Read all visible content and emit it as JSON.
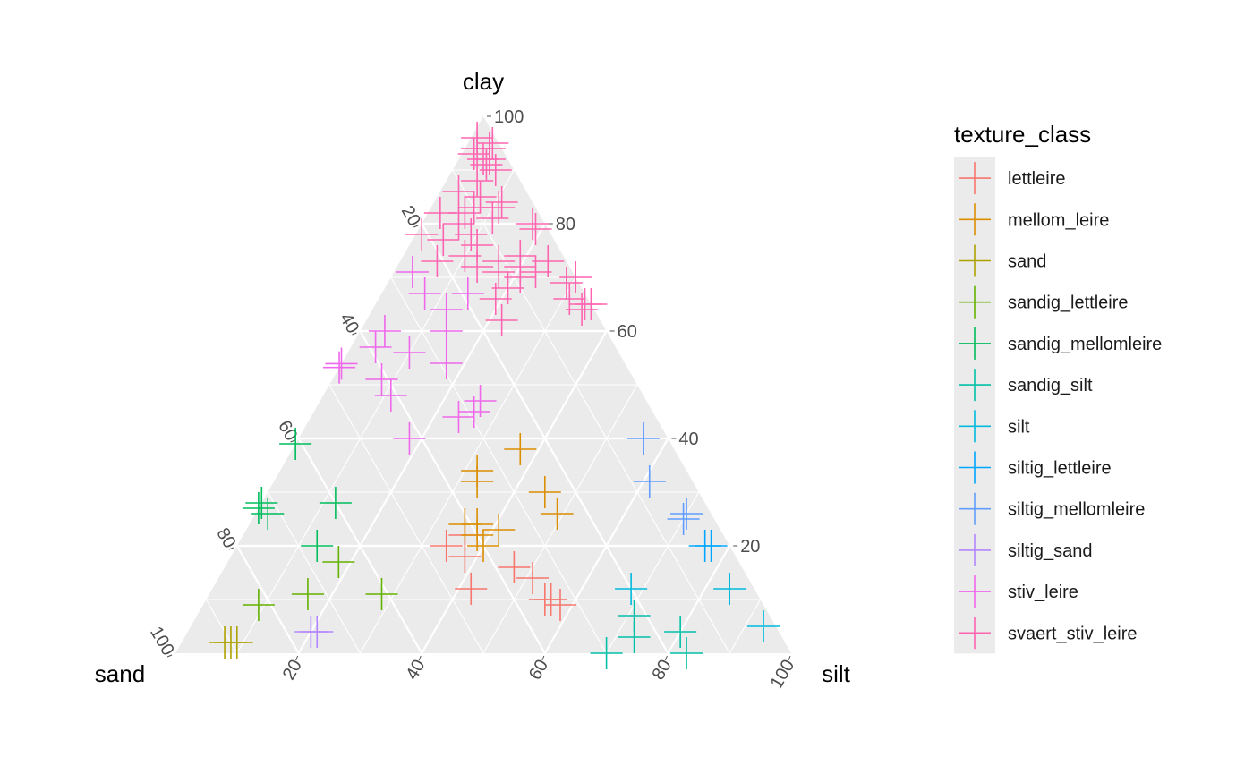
{
  "chart_data": {
    "type": "scatter",
    "subtype": "ternary",
    "axes": {
      "clay": {
        "label": "clay",
        "ticks": [
          20,
          40,
          60,
          80,
          100
        ]
      },
      "sand": {
        "label": "sand",
        "ticks": [
          20,
          40,
          60,
          80,
          100
        ]
      },
      "silt": {
        "label": "silt",
        "ticks": [
          20,
          40,
          60,
          80,
          100
        ]
      }
    },
    "range": [
      0,
      100
    ],
    "grid": true,
    "marker": "plus",
    "legend": {
      "title": "texture_class",
      "placement": "right"
    },
    "series": [
      {
        "name": "lettleire",
        "color": "#F8766D",
        "points": [
          [
            12,
            46,
            42
          ],
          [
            18,
            44,
            38
          ],
          [
            20,
            46,
            34
          ],
          [
            22,
            42,
            36
          ],
          [
            14,
            35,
            51
          ],
          [
            16,
            37,
            47
          ],
          [
            9,
            33,
            58
          ],
          [
            10,
            34,
            56
          ],
          [
            10,
            35,
            55
          ]
        ]
      },
      {
        "name": "mellom_leire",
        "color": "#DB8E00",
        "points": [
          [
            34,
            34,
            32
          ],
          [
            32,
            35,
            33
          ],
          [
            22,
            40,
            38
          ],
          [
            24,
            39,
            37
          ],
          [
            23,
            36,
            41
          ],
          [
            38,
            25,
            37
          ],
          [
            30,
            25,
            45
          ],
          [
            26,
            25,
            49
          ],
          [
            24,
            41,
            35
          ],
          [
            20,
            40,
            40
          ]
        ]
      },
      {
        "name": "sand",
        "color": "#AEA200",
        "points": [
          [
            2,
            91,
            7
          ],
          [
            2,
            90,
            8
          ],
          [
            2,
            89,
            9
          ]
        ]
      },
      {
        "name": "sandig_lettleire",
        "color": "#64B200",
        "points": [
          [
            17,
            65,
            18
          ],
          [
            11,
            73,
            16
          ],
          [
            11,
            61,
            28
          ],
          [
            9,
            82,
            9
          ]
        ]
      },
      {
        "name": "sandig_mellomleire",
        "color": "#00BD5C",
        "points": [
          [
            28,
            72,
            0
          ],
          [
            20,
            67,
            13
          ],
          [
            28,
            60,
            12
          ],
          [
            39,
            61,
            0
          ],
          [
            27,
            73,
            0
          ],
          [
            26,
            72,
            2
          ]
        ]
      },
      {
        "name": "sandig_silt",
        "color": "#00C1A7",
        "points": [
          [
            7,
            22,
            71
          ],
          [
            3,
            24,
            73
          ],
          [
            0,
            30,
            70
          ],
          [
            0,
            17,
            83
          ],
          [
            4,
            16,
            80
          ]
        ]
      },
      {
        "name": "silt",
        "color": "#00BADE",
        "points": [
          [
            12,
            20,
            68
          ],
          [
            12,
            4,
            84
          ],
          [
            5,
            2,
            93
          ]
        ]
      },
      {
        "name": "siltig_lettleire",
        "color": "#00A6FF",
        "points": [
          [
            20,
            3,
            77
          ],
          [
            20,
            4,
            76
          ]
        ]
      },
      {
        "name": "siltig_mellomleire",
        "color": "#619CFF",
        "points": [
          [
            40,
            4,
            56
          ],
          [
            32,
            7,
            61
          ],
          [
            25,
            5,
            70
          ],
          [
            26,
            4,
            70
          ]
        ]
      },
      {
        "name": "siltig_sand",
        "color": "#B385FF",
        "points": [
          [
            4,
            76,
            20
          ],
          [
            4,
            75,
            21
          ]
        ]
      },
      {
        "name": "stiv_leire",
        "color": "#EF67EB",
        "points": [
          [
            60,
            26,
            14
          ],
          [
            64,
            24,
            12
          ],
          [
            67,
            26,
            7
          ],
          [
            71,
            26,
            3
          ],
          [
            67,
            19,
            14
          ],
          [
            60,
            36,
            4
          ],
          [
            57,
            39,
            4
          ],
          [
            48,
            41,
            11
          ],
          [
            40,
            42,
            18
          ],
          [
            44,
            32,
            24
          ],
          [
            45,
            29,
            26
          ],
          [
            47,
            27,
            26
          ],
          [
            54,
            29,
            17
          ],
          [
            56,
            34,
            10
          ],
          [
            51,
            41,
            8
          ],
          [
            58,
            51,
            0
          ],
          [
            55,
            47,
            0
          ]
        ]
      },
      {
        "name": "svaert_stiv_leire",
        "color": "#FF64B0",
        "points": [
          [
            96,
            3,
            1
          ],
          [
            94,
            4,
            2
          ],
          [
            93,
            5,
            2
          ],
          [
            92,
            4,
            4
          ],
          [
            95,
            1,
            4
          ],
          [
            94,
            2,
            4
          ],
          [
            92,
            3,
            5
          ],
          [
            90,
            3,
            7
          ],
          [
            91,
            4,
            5
          ],
          [
            88,
            7,
            5
          ],
          [
            85,
            8,
            7
          ],
          [
            83,
            10,
            7
          ],
          [
            86,
            11,
            3
          ],
          [
            82,
            12,
            6
          ],
          [
            84,
            5,
            11
          ],
          [
            83,
            6,
            11
          ],
          [
            80,
            14,
            6
          ],
          [
            78,
            13,
            9
          ],
          [
            76,
            13,
            11
          ],
          [
            74,
            16,
            10
          ],
          [
            72,
            15,
            13
          ],
          [
            71,
            12,
            17
          ],
          [
            73,
            11,
            16
          ],
          [
            81,
            8,
            11
          ],
          [
            80,
            2,
            18
          ],
          [
            79,
            2,
            19
          ],
          [
            73,
            3,
            24
          ],
          [
            71,
            6,
            23
          ],
          [
            70,
            0,
            30
          ],
          [
            69,
            2,
            29
          ],
          [
            66,
            3,
            31
          ],
          [
            65,
            0,
            35
          ],
          [
            64,
            2,
            34
          ],
          [
            65,
            1,
            34
          ],
          [
            62,
            16,
            22
          ],
          [
            74,
            7,
            19
          ],
          [
            72,
            8,
            20
          ],
          [
            73,
            21,
            6
          ],
          [
            78,
            21,
            1
          ],
          [
            77,
            18,
            5
          ],
          [
            68,
            12,
            20
          ],
          [
            66,
            15,
            19
          ],
          [
            70,
            9,
            21
          ],
          [
            82,
            16,
            2
          ]
        ]
      }
    ]
  }
}
